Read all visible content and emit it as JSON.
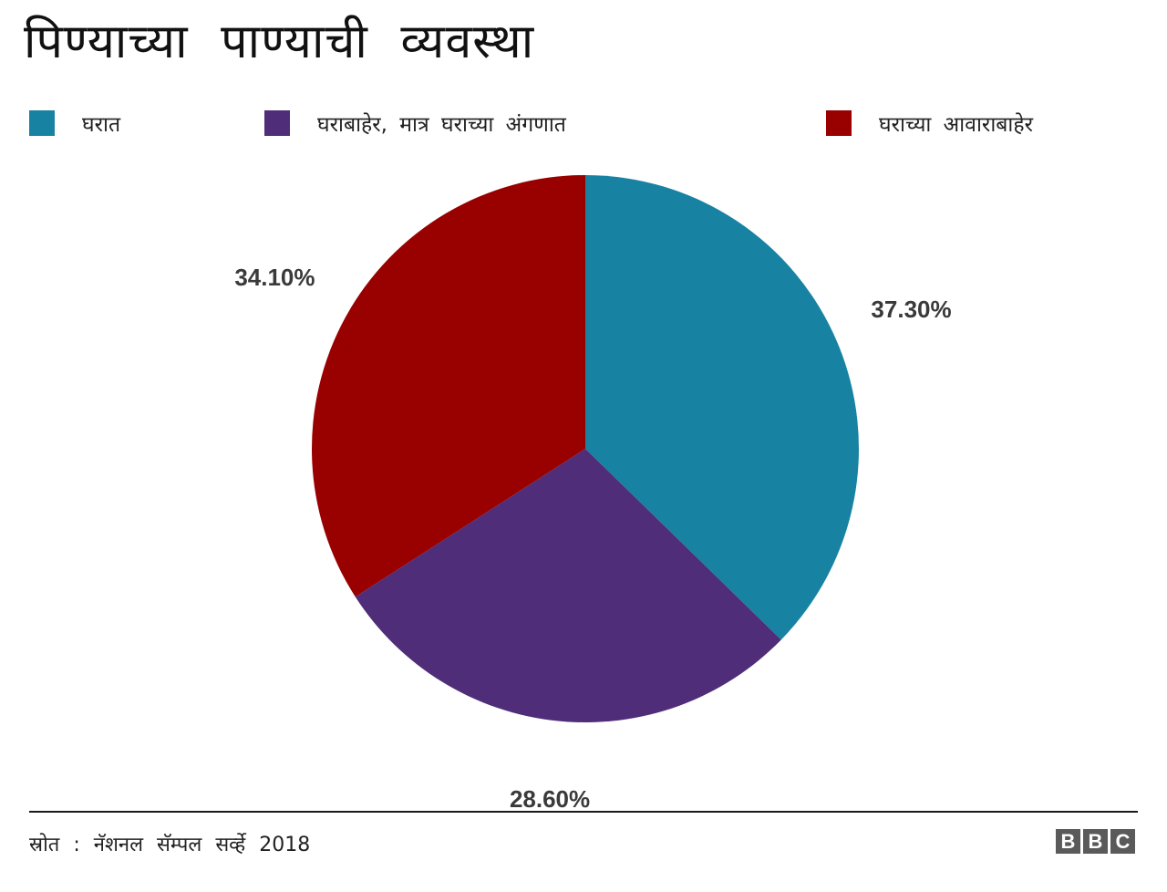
{
  "title": "पिण्याच्या पाण्याची व्यवस्था",
  "source": "स्रोत : नॅशनल सॅम्पल सर्व्हे 2018",
  "logo": [
    "B",
    "B",
    "C"
  ],
  "colors": {
    "teal": "#1882A2",
    "purple": "#4F2D78",
    "red": "#990000"
  },
  "chart_data": {
    "type": "pie",
    "categories": [
      "घरात",
      "घराबाहेर, मात्र घराच्या अंगणात",
      "घराच्या आवाराबाहेर"
    ],
    "values": [
      37.3,
      28.6,
      34.1
    ],
    "value_labels": [
      "37.30%",
      "28.60%",
      "34.10%"
    ],
    "colors": [
      "#1882A2",
      "#4F2D78",
      "#990000"
    ],
    "legend_position": "top",
    "start_angle": "top (12 o'clock), clockwise"
  }
}
